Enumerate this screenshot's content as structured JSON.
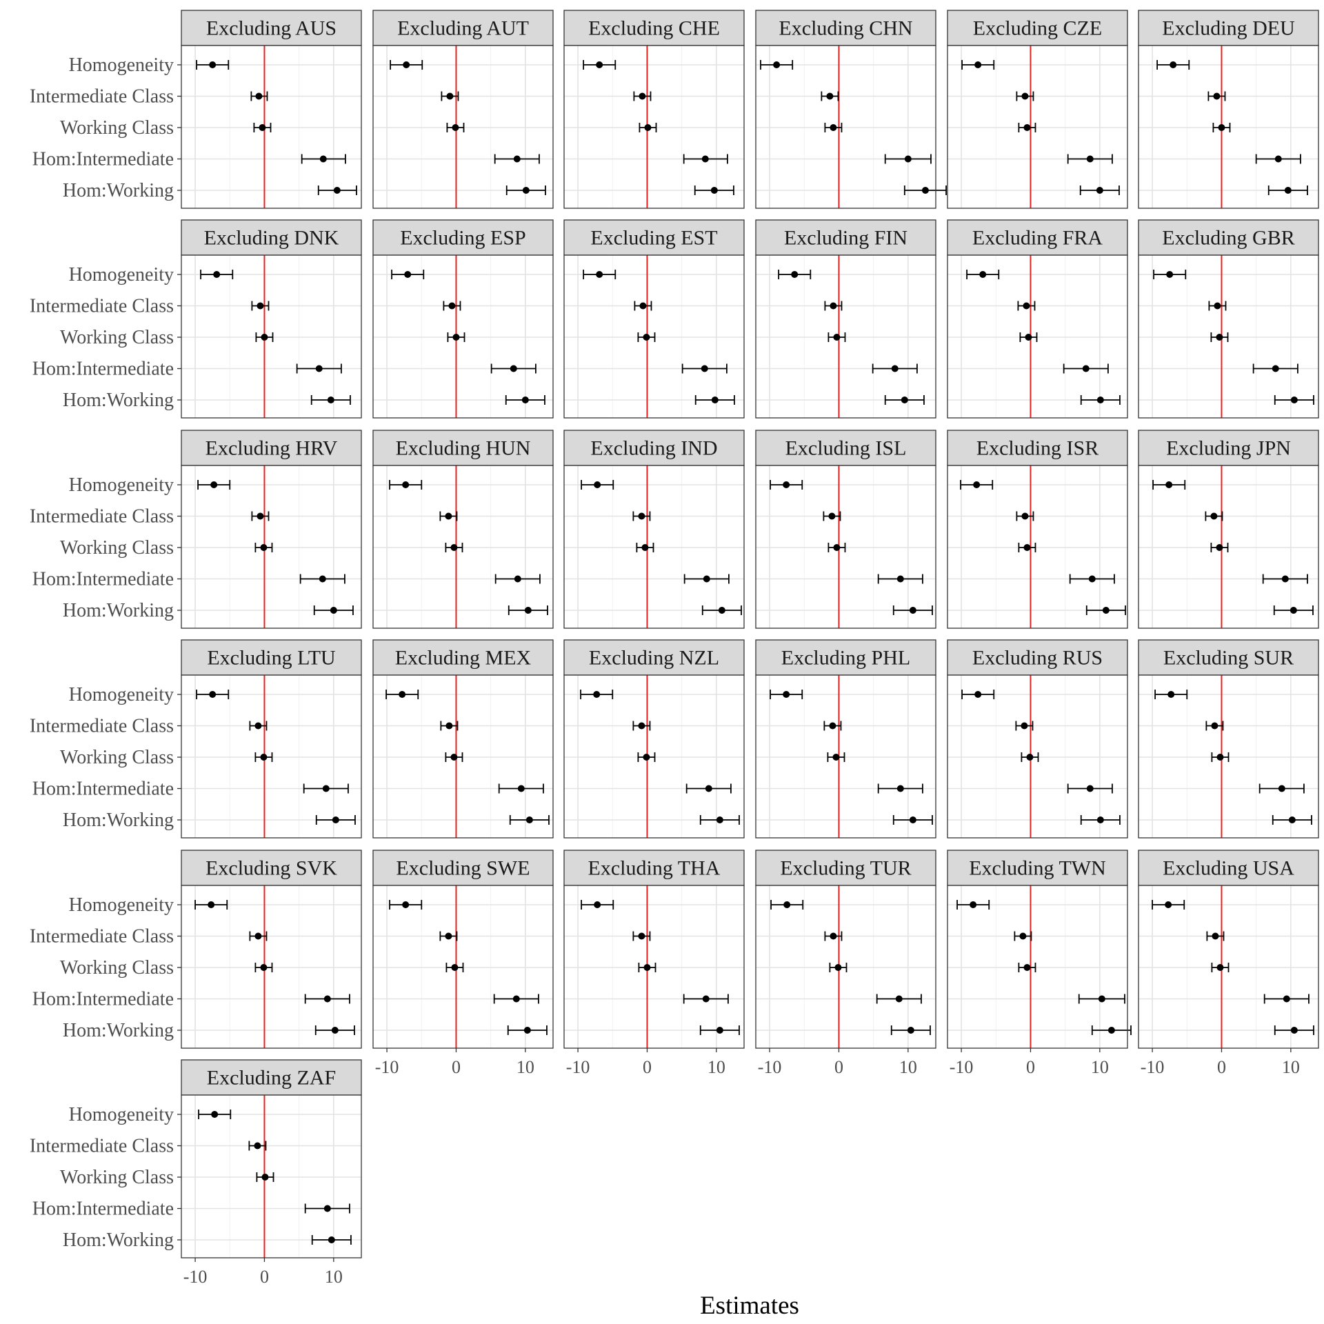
{
  "chart_data": {
    "type": "forest",
    "layout": "facet-wrap",
    "ncol": 6,
    "xlabel": "Estimates",
    "ylabel": "",
    "xlim": [
      -12,
      14
    ],
    "xticks": [
      -10,
      0,
      10
    ],
    "reference_line": {
      "x": 0,
      "color": "#e8211e"
    },
    "grid": true,
    "point_color": "#000000",
    "strip_fill": "#d9d9d9",
    "terms": [
      "Homogeneity",
      "Intermediate Class",
      "Working Class",
      "Hom:Intermediate",
      "Hom:Working"
    ],
    "panels": [
      {
        "title": "Excluding AUS",
        "estimates": [
          -7.5,
          -0.8,
          -0.3,
          8.5,
          10.5
        ],
        "lower": [
          -9.8,
          -1.9,
          -1.5,
          5.4,
          7.8
        ],
        "upper": [
          -5.2,
          0.4,
          0.9,
          11.7,
          13.3
        ]
      },
      {
        "title": "Excluding AUT",
        "estimates": [
          -7.2,
          -0.9,
          -0.1,
          8.8,
          10.1
        ],
        "lower": [
          -9.5,
          -2.1,
          -1.3,
          5.6,
          7.3
        ],
        "upper": [
          -4.9,
          0.3,
          1.1,
          12.0,
          12.9
        ]
      },
      {
        "title": "Excluding CHE",
        "estimates": [
          -6.9,
          -0.7,
          0.1,
          8.4,
          9.7
        ],
        "lower": [
          -9.2,
          -1.9,
          -1.1,
          5.3,
          6.9
        ],
        "upper": [
          -4.6,
          0.5,
          1.3,
          11.6,
          12.5
        ]
      },
      {
        "title": "Excluding CHN",
        "estimates": [
          -9.0,
          -1.3,
          -0.8,
          10.0,
          12.5
        ],
        "lower": [
          -11.3,
          -2.5,
          -2.0,
          6.7,
          9.5
        ],
        "upper": [
          -6.7,
          -0.1,
          0.4,
          13.3,
          15.5
        ]
      },
      {
        "title": "Excluding CZE",
        "estimates": [
          -7.6,
          -0.8,
          -0.5,
          8.6,
          10.0
        ],
        "lower": [
          -9.9,
          -2.0,
          -1.7,
          5.4,
          7.2
        ],
        "upper": [
          -5.3,
          0.4,
          0.7,
          11.8,
          12.8
        ]
      },
      {
        "title": "Excluding DEU",
        "estimates": [
          -7.0,
          -0.7,
          0.0,
          8.2,
          9.6
        ],
        "lower": [
          -9.3,
          -1.9,
          -1.2,
          5.0,
          6.8
        ],
        "upper": [
          -4.7,
          0.5,
          1.2,
          11.4,
          12.4
        ]
      },
      {
        "title": "Excluding DNK",
        "estimates": [
          -6.9,
          -0.6,
          0.0,
          7.9,
          9.6
        ],
        "lower": [
          -9.2,
          -1.8,
          -1.2,
          4.7,
          6.8
        ],
        "upper": [
          -4.6,
          0.6,
          1.2,
          11.1,
          12.4
        ]
      },
      {
        "title": "Excluding ESP",
        "estimates": [
          -7.0,
          -0.6,
          0.0,
          8.3,
          10.0
        ],
        "lower": [
          -9.3,
          -1.8,
          -1.2,
          5.1,
          7.2
        ],
        "upper": [
          -4.7,
          0.6,
          1.2,
          11.5,
          12.8
        ]
      },
      {
        "title": "Excluding EST",
        "estimates": [
          -6.9,
          -0.6,
          -0.1,
          8.3,
          9.8
        ],
        "lower": [
          -9.2,
          -1.8,
          -1.3,
          5.1,
          7.0
        ],
        "upper": [
          -4.6,
          0.6,
          1.1,
          11.5,
          12.6
        ]
      },
      {
        "title": "Excluding FIN",
        "estimates": [
          -6.4,
          -0.8,
          -0.3,
          8.1,
          9.5
        ],
        "lower": [
          -8.7,
          -2.0,
          -1.5,
          4.9,
          6.7
        ],
        "upper": [
          -4.1,
          0.4,
          0.9,
          11.3,
          12.3
        ]
      },
      {
        "title": "Excluding FRA",
        "estimates": [
          -6.9,
          -0.6,
          -0.3,
          8.0,
          10.1
        ],
        "lower": [
          -9.2,
          -1.8,
          -1.5,
          4.8,
          7.3
        ],
        "upper": [
          -4.6,
          0.6,
          0.9,
          11.2,
          12.9
        ]
      },
      {
        "title": "Excluding GBR",
        "estimates": [
          -7.5,
          -0.6,
          -0.3,
          7.8,
          10.5
        ],
        "lower": [
          -9.8,
          -1.8,
          -1.5,
          4.6,
          7.7
        ],
        "upper": [
          -5.2,
          0.6,
          0.9,
          11.0,
          13.3
        ]
      },
      {
        "title": "Excluding HRV",
        "estimates": [
          -7.3,
          -0.6,
          -0.1,
          8.4,
          10.0
        ],
        "lower": [
          -9.6,
          -1.8,
          -1.3,
          5.2,
          7.2
        ],
        "upper": [
          -5.0,
          0.6,
          1.1,
          11.6,
          12.8
        ]
      },
      {
        "title": "Excluding HUN",
        "estimates": [
          -7.3,
          -1.1,
          -0.3,
          8.9,
          10.4
        ],
        "lower": [
          -9.6,
          -2.3,
          -1.5,
          5.7,
          7.6
        ],
        "upper": [
          -5.0,
          0.1,
          0.9,
          12.1,
          13.2
        ]
      },
      {
        "title": "Excluding IND",
        "estimates": [
          -7.2,
          -0.8,
          -0.3,
          8.6,
          10.8
        ],
        "lower": [
          -9.5,
          -2.0,
          -1.5,
          5.4,
          8.0
        ],
        "upper": [
          -4.9,
          0.4,
          0.9,
          11.8,
          13.6
        ]
      },
      {
        "title": "Excluding ISL",
        "estimates": [
          -7.6,
          -1.0,
          -0.3,
          8.9,
          10.7
        ],
        "lower": [
          -9.9,
          -2.2,
          -1.5,
          5.7,
          7.9
        ],
        "upper": [
          -5.3,
          0.2,
          0.9,
          12.1,
          13.5
        ]
      },
      {
        "title": "Excluding ISR",
        "estimates": [
          -7.8,
          -0.8,
          -0.5,
          8.9,
          10.9
        ],
        "lower": [
          -10.1,
          -2.0,
          -1.7,
          5.7,
          8.1
        ],
        "upper": [
          -5.5,
          0.4,
          0.7,
          12.1,
          13.7
        ]
      },
      {
        "title": "Excluding JPN",
        "estimates": [
          -7.6,
          -1.1,
          -0.3,
          9.2,
          10.4
        ],
        "lower": [
          -9.9,
          -2.3,
          -1.5,
          6.0,
          7.6
        ],
        "upper": [
          -5.3,
          0.1,
          0.9,
          12.4,
          13.2
        ]
      },
      {
        "title": "Excluding LTU",
        "estimates": [
          -7.5,
          -0.9,
          -0.1,
          8.9,
          10.3
        ],
        "lower": [
          -9.8,
          -2.1,
          -1.3,
          5.7,
          7.5
        ],
        "upper": [
          -5.2,
          0.3,
          1.1,
          12.1,
          13.1
        ]
      },
      {
        "title": "Excluding MEX",
        "estimates": [
          -7.8,
          -1.0,
          -0.3,
          9.4,
          10.6
        ],
        "lower": [
          -10.1,
          -2.2,
          -1.5,
          6.2,
          7.8
        ],
        "upper": [
          -5.5,
          0.2,
          0.9,
          12.6,
          13.4
        ]
      },
      {
        "title": "Excluding NZL",
        "estimates": [
          -7.3,
          -0.8,
          -0.1,
          8.9,
          10.5
        ],
        "lower": [
          -9.6,
          -2.0,
          -1.3,
          5.7,
          7.7
        ],
        "upper": [
          -5.0,
          0.4,
          1.1,
          12.1,
          13.3
        ]
      },
      {
        "title": "Excluding PHL",
        "estimates": [
          -7.6,
          -0.9,
          -0.4,
          8.9,
          10.7
        ],
        "lower": [
          -9.9,
          -2.1,
          -1.6,
          5.7,
          7.9
        ],
        "upper": [
          -5.3,
          0.3,
          0.8,
          12.1,
          13.5
        ]
      },
      {
        "title": "Excluding RUS",
        "estimates": [
          -7.6,
          -0.9,
          -0.1,
          8.6,
          10.1
        ],
        "lower": [
          -9.9,
          -2.1,
          -1.3,
          5.4,
          7.3
        ],
        "upper": [
          -5.3,
          0.3,
          1.1,
          11.8,
          12.9
        ]
      },
      {
        "title": "Excluding SUR",
        "estimates": [
          -7.3,
          -1.0,
          -0.2,
          8.7,
          10.2
        ],
        "lower": [
          -9.6,
          -2.2,
          -1.4,
          5.5,
          7.4
        ],
        "upper": [
          -5.0,
          0.2,
          1.0,
          11.9,
          13.0
        ]
      },
      {
        "title": "Excluding SVK",
        "estimates": [
          -7.7,
          -0.9,
          -0.1,
          9.1,
          10.2
        ],
        "lower": [
          -10.0,
          -2.1,
          -1.3,
          5.9,
          7.4
        ],
        "upper": [
          -5.4,
          0.3,
          1.1,
          12.3,
          13.0
        ]
      },
      {
        "title": "Excluding SWE",
        "estimates": [
          -7.3,
          -1.1,
          -0.2,
          8.7,
          10.3
        ],
        "lower": [
          -9.6,
          -2.3,
          -1.4,
          5.5,
          7.5
        ],
        "upper": [
          -5.0,
          0.1,
          1.0,
          11.9,
          13.1
        ]
      },
      {
        "title": "Excluding THA",
        "estimates": [
          -7.2,
          -0.8,
          0.0,
          8.5,
          10.5
        ],
        "lower": [
          -9.5,
          -2.0,
          -1.2,
          5.3,
          7.7
        ],
        "upper": [
          -4.9,
          0.4,
          1.2,
          11.7,
          13.3
        ]
      },
      {
        "title": "Excluding TUR",
        "estimates": [
          -7.5,
          -0.8,
          -0.1,
          8.7,
          10.4
        ],
        "lower": [
          -9.8,
          -2.0,
          -1.3,
          5.5,
          7.6
        ],
        "upper": [
          -5.2,
          0.4,
          1.1,
          11.9,
          13.2
        ]
      },
      {
        "title": "Excluding TWN",
        "estimates": [
          -8.3,
          -1.1,
          -0.5,
          10.3,
          11.7
        ],
        "lower": [
          -10.6,
          -2.3,
          -1.7,
          7.0,
          8.9
        ],
        "upper": [
          -6.0,
          0.1,
          0.7,
          13.6,
          14.5
        ]
      },
      {
        "title": "Excluding USA",
        "estimates": [
          -7.7,
          -0.9,
          -0.2,
          9.4,
          10.5
        ],
        "lower": [
          -10.0,
          -2.1,
          -1.4,
          6.2,
          7.7
        ],
        "upper": [
          -5.4,
          0.3,
          1.0,
          12.6,
          13.3
        ]
      },
      {
        "title": "Excluding ZAF",
        "estimates": [
          -7.2,
          -1.0,
          0.1,
          9.1,
          9.7
        ],
        "lower": [
          -9.5,
          -2.2,
          -1.1,
          5.9,
          6.9
        ],
        "upper": [
          -4.9,
          0.2,
          1.3,
          12.3,
          12.5
        ]
      }
    ]
  }
}
